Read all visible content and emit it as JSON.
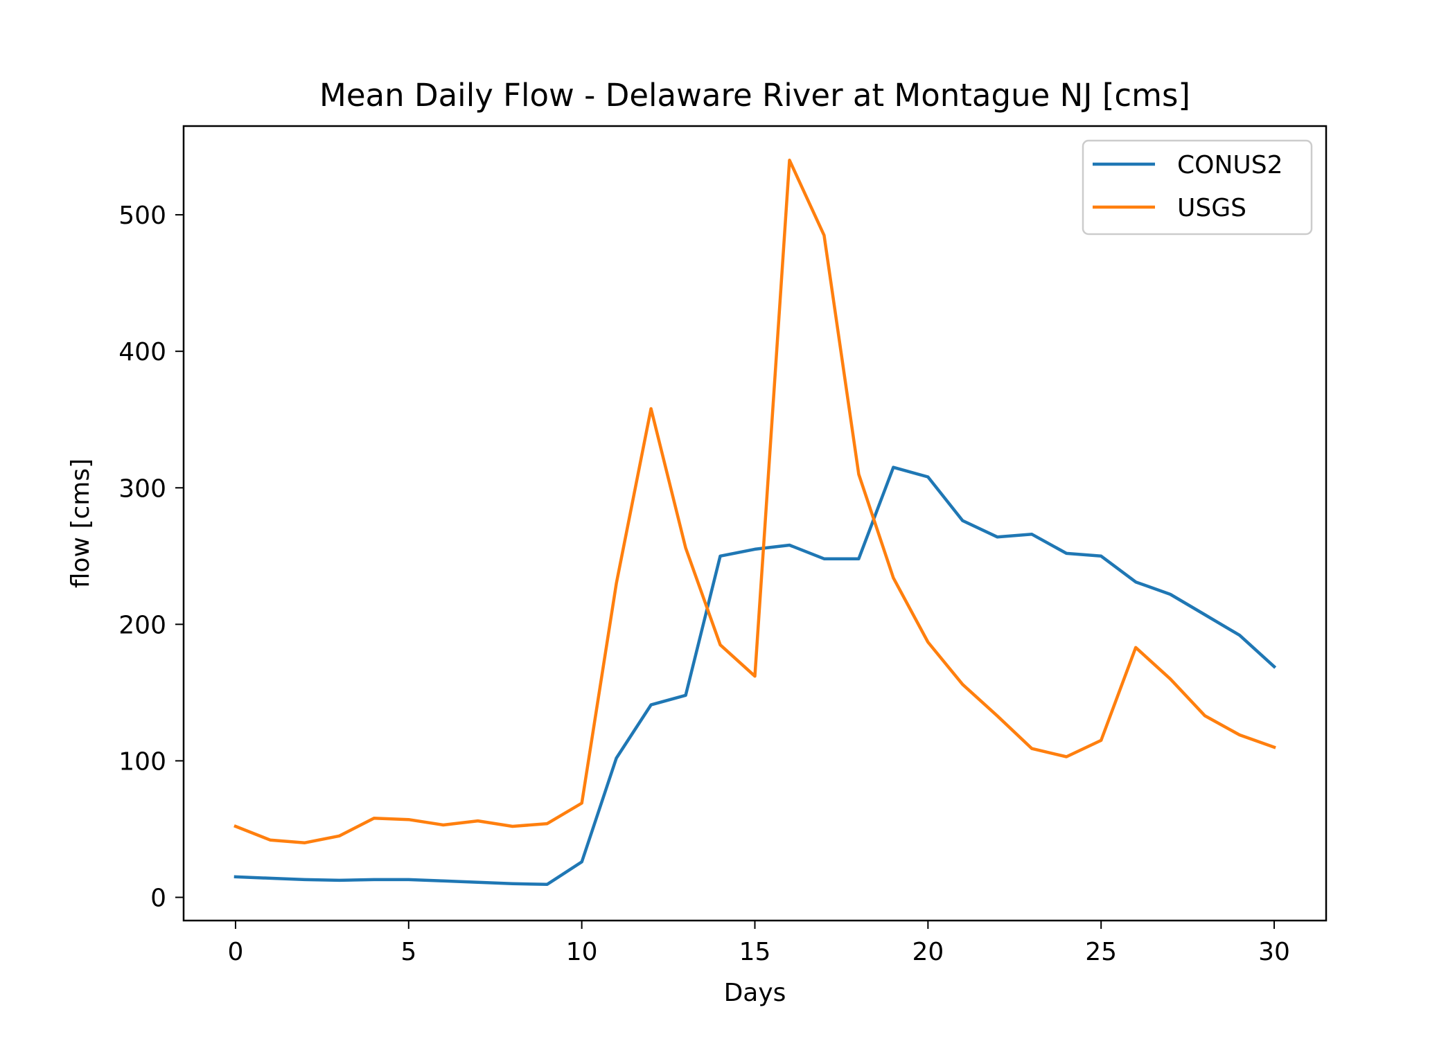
{
  "chart_data": {
    "type": "line",
    "title": "Mean Daily Flow - Delaware River at Montague NJ [cms]",
    "xlabel": "Days",
    "ylabel": "flow [cms]",
    "xlim": [
      -1.5,
      31.5
    ],
    "ylim": [
      -17,
      565
    ],
    "xticks": [
      0,
      5,
      10,
      15,
      20,
      25,
      30
    ],
    "yticks": [
      0,
      100,
      200,
      300,
      400,
      500
    ],
    "grid": false,
    "legend": "top-right",
    "x": [
      0,
      1,
      2,
      3,
      4,
      5,
      6,
      7,
      8,
      9,
      10,
      11,
      12,
      13,
      14,
      15,
      16,
      17,
      18,
      19,
      20,
      21,
      22,
      23,
      24,
      25,
      26,
      27,
      28,
      29,
      30
    ],
    "series": [
      {
        "name": "CONUS2",
        "color": "#1f77b4",
        "values": [
          15,
          14,
          13,
          12.5,
          13,
          13,
          12,
          11,
          10,
          9.5,
          26,
          102,
          141,
          148,
          250,
          255,
          258,
          248,
          248,
          315,
          308,
          276,
          264,
          266,
          252,
          250,
          231,
          222,
          207,
          192,
          169
        ]
      },
      {
        "name": "USGS",
        "color": "#ff7f0e",
        "values": [
          52,
          42,
          40,
          45,
          58,
          57,
          53,
          56,
          52,
          54,
          69,
          230,
          358,
          256,
          185,
          162,
          540,
          485,
          310,
          234,
          187,
          156,
          133,
          109,
          103,
          115,
          183,
          160,
          133,
          119,
          110
        ]
      }
    ]
  }
}
